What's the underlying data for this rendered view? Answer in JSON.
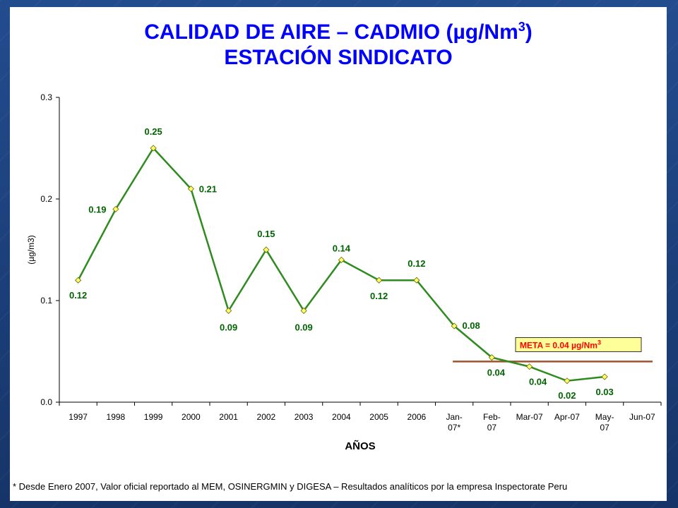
{
  "slide": {
    "title_line1_pre": "CALIDAD  DE  AIRE – CADMIO (µg/Nm",
    "title_line1_sup": "3",
    "title_line1_post": ")",
    "title_line2": "ESTACIÓN  SINDICATO",
    "footnote": "* Desde Enero  2007,  Valor oficial reportado al MEM, OSINERGMIN y DIGESA – Resultados  analíticos  por  la  empresa Inspectorate Peru"
  },
  "chart_data": {
    "type": "line",
    "xlabel": "AÑOS",
    "ylabel": "(µg/m3)",
    "ylim": [
      0,
      0.3
    ],
    "yticks": [
      "0.0",
      "0.1",
      "0.2",
      "0.3"
    ],
    "ytick_values": [
      0,
      0.1,
      0.2,
      0.3
    ],
    "categories": [
      [
        "1997"
      ],
      [
        "1998"
      ],
      [
        "1999"
      ],
      [
        "2000"
      ],
      [
        "2001"
      ],
      [
        "2002"
      ],
      [
        "2003"
      ],
      [
        "2004"
      ],
      [
        "2005"
      ],
      [
        "2006"
      ],
      [
        "Jan-",
        "07*"
      ],
      [
        "Feb-",
        "07"
      ],
      [
        "Mar-07"
      ],
      [
        "Apr-07"
      ],
      [
        "May-",
        "07"
      ],
      [
        "Jun-07"
      ]
    ],
    "series": [
      {
        "color": "#2e8b1e",
        "values": [
          0.12,
          0.19,
          0.25,
          0.21,
          0.09,
          0.15,
          0.09,
          0.14,
          0.12,
          0.12,
          0.075,
          0.044,
          0.035,
          0.021,
          0.025,
          null
        ],
        "data_labels": [
          "0.12",
          "0.19",
          "0.25",
          "0.21",
          "0.09",
          "0.15",
          "0.09",
          "0.14",
          "0.12",
          "0.12",
          "0.08",
          "0.04",
          "0.04",
          "0.02",
          "0.03",
          ""
        ]
      }
    ],
    "reference_line": {
      "value": 0.04,
      "label_pre": "META = 0.04 µg/Nm",
      "label_sup": "3",
      "color": "#a0522d",
      "label_color": "#ff0000",
      "label_bg": "#ffff99"
    },
    "grid": false,
    "legend": "none"
  }
}
